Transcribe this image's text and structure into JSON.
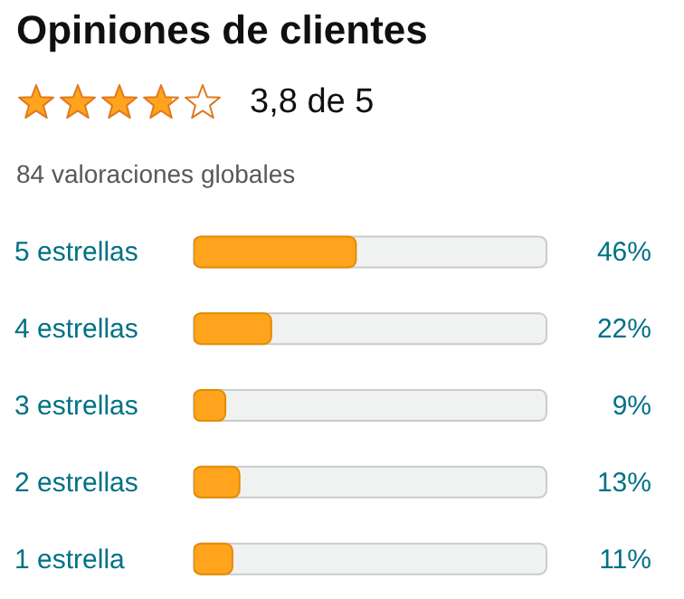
{
  "chart_data": {
    "type": "bar",
    "orientation": "horizontal",
    "title": "Opiniones de clientes",
    "subtitle": "84 valoraciones globales",
    "annotations": [
      "3,8 de 5"
    ],
    "categories": [
      "5 estrellas",
      "4 estrellas",
      "3 estrellas",
      "2 estrellas",
      "1 estrella"
    ],
    "values": [
      46,
      22,
      9,
      13,
      11
    ],
    "value_labels": [
      "46%",
      "22%",
      "9%",
      "13%",
      "11%"
    ],
    "color": "#ffa41c",
    "xlim": [
      0,
      100
    ],
    "tick_labels": "y"
  }
}
